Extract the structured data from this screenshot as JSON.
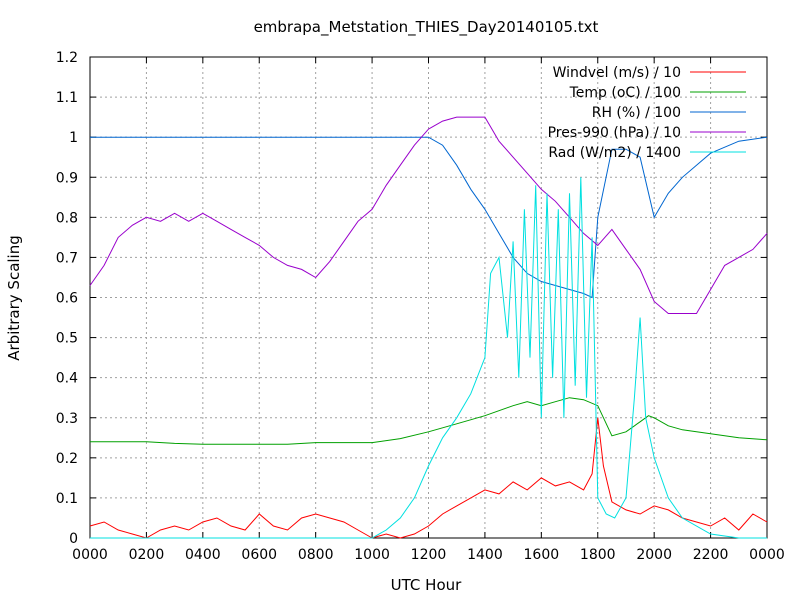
{
  "chart_data": {
    "type": "line",
    "title": "embrapa_Metstation_THIES_Day20140105.txt",
    "xlabel": "UTC Hour",
    "ylabel": "Arbitrary Scaling",
    "xlim": [
      0,
      2400
    ],
    "ylim": [
      0,
      1.2
    ],
    "grid": true,
    "legend": "top-right",
    "x_tick_values": [
      0,
      200,
      400,
      600,
      800,
      1000,
      1200,
      1400,
      1600,
      1800,
      2000,
      2200,
      2400
    ],
    "x_ticks": [
      "0000",
      "0200",
      "0400",
      "0600",
      "0800",
      "1000",
      "1200",
      "1400",
      "1600",
      "1800",
      "2000",
      "2200",
      "0000"
    ],
    "y_ticks": [
      "0",
      "0.1",
      "0.2",
      "0.3",
      "0.4",
      "0.5",
      "0.6",
      "0.7",
      "0.8",
      "0.9",
      "1",
      "1.1",
      "1.2"
    ],
    "y_tick_values": [
      0,
      0.1,
      0.2,
      0.3,
      0.4,
      0.5,
      0.6,
      0.7,
      0.8,
      0.9,
      1,
      1.1,
      1.2
    ],
    "series": [
      {
        "name": "Windvel (m/s) / 10",
        "color": "#ff0000",
        "x": [
          0,
          50,
          100,
          150,
          200,
          250,
          300,
          350,
          400,
          450,
          500,
          550,
          600,
          650,
          700,
          750,
          800,
          850,
          900,
          950,
          1000,
          1050,
          1100,
          1150,
          1200,
          1250,
          1300,
          1350,
          1400,
          1450,
          1500,
          1550,
          1600,
          1650,
          1700,
          1750,
          1780,
          1800,
          1820,
          1850,
          1900,
          1950,
          2000,
          2050,
          2100,
          2150,
          2200,
          2250,
          2300,
          2350,
          2400
        ],
        "y": [
          0.03,
          0.04,
          0.02,
          0.01,
          0.0,
          0.02,
          0.03,
          0.02,
          0.04,
          0.05,
          0.03,
          0.02,
          0.06,
          0.03,
          0.02,
          0.05,
          0.06,
          0.05,
          0.04,
          0.02,
          0.0,
          0.01,
          0.0,
          0.01,
          0.03,
          0.06,
          0.08,
          0.1,
          0.12,
          0.11,
          0.14,
          0.12,
          0.15,
          0.13,
          0.14,
          0.12,
          0.16,
          0.3,
          0.18,
          0.09,
          0.07,
          0.06,
          0.08,
          0.07,
          0.05,
          0.04,
          0.03,
          0.05,
          0.02,
          0.06,
          0.04
        ]
      },
      {
        "name": "Temp (oC) / 100",
        "color": "#00a000",
        "x": [
          0,
          100,
          200,
          300,
          400,
          500,
          600,
          700,
          800,
          900,
          1000,
          1100,
          1200,
          1300,
          1400,
          1500,
          1550,
          1600,
          1650,
          1700,
          1750,
          1800,
          1850,
          1900,
          1950,
          1980,
          2000,
          2050,
          2100,
          2200,
          2300,
          2400
        ],
        "y": [
          0.24,
          0.24,
          0.24,
          0.236,
          0.234,
          0.234,
          0.234,
          0.234,
          0.238,
          0.238,
          0.238,
          0.248,
          0.265,
          0.285,
          0.305,
          0.33,
          0.34,
          0.33,
          0.34,
          0.35,
          0.345,
          0.33,
          0.255,
          0.265,
          0.29,
          0.305,
          0.3,
          0.28,
          0.27,
          0.26,
          0.25,
          0.245
        ]
      },
      {
        "name": "RH (%) / 100",
        "color": "#0066d0",
        "x": [
          0,
          200,
          400,
          600,
          800,
          1000,
          1100,
          1200,
          1250,
          1300,
          1350,
          1400,
          1450,
          1500,
          1550,
          1600,
          1650,
          1700,
          1750,
          1780,
          1800,
          1850,
          1900,
          1950,
          2000,
          2050,
          2100,
          2200,
          2300,
          2400
        ],
        "y": [
          1.0,
          1.0,
          1.0,
          1.0,
          1.0,
          1.0,
          1.0,
          1.0,
          0.98,
          0.93,
          0.87,
          0.82,
          0.76,
          0.7,
          0.66,
          0.64,
          0.63,
          0.62,
          0.61,
          0.6,
          0.8,
          0.97,
          0.97,
          0.95,
          0.8,
          0.86,
          0.9,
          0.96,
          0.99,
          1.0
        ]
      },
      {
        "name": "Pres-990 (hPa) / 10",
        "color": "#9900cc",
        "x": [
          0,
          50,
          100,
          150,
          200,
          250,
          300,
          350,
          400,
          450,
          500,
          550,
          600,
          650,
          700,
          750,
          800,
          850,
          900,
          950,
          1000,
          1050,
          1100,
          1150,
          1200,
          1250,
          1300,
          1350,
          1400,
          1450,
          1500,
          1550,
          1600,
          1650,
          1700,
          1750,
          1800,
          1850,
          1900,
          1950,
          2000,
          2050,
          2100,
          2150,
          2200,
          2250,
          2300,
          2350,
          2400
        ],
        "y": [
          0.63,
          0.68,
          0.75,
          0.78,
          0.8,
          0.79,
          0.81,
          0.79,
          0.81,
          0.79,
          0.77,
          0.75,
          0.73,
          0.7,
          0.68,
          0.67,
          0.65,
          0.69,
          0.74,
          0.79,
          0.82,
          0.88,
          0.93,
          0.98,
          1.02,
          1.04,
          1.05,
          1.05,
          1.05,
          0.99,
          0.95,
          0.91,
          0.87,
          0.84,
          0.8,
          0.76,
          0.73,
          0.77,
          0.72,
          0.67,
          0.59,
          0.56,
          0.56,
          0.56,
          0.62,
          0.68,
          0.7,
          0.72,
          0.76
        ]
      },
      {
        "name": "Rad (W/m2) / 1400",
        "color": "#00e0e0",
        "x": [
          0,
          1000,
          1050,
          1100,
          1150,
          1200,
          1250,
          1300,
          1350,
          1400,
          1420,
          1450,
          1480,
          1500,
          1520,
          1540,
          1560,
          1580,
          1600,
          1620,
          1640,
          1660,
          1680,
          1700,
          1720,
          1740,
          1760,
          1780,
          1800,
          1830,
          1860,
          1900,
          1930,
          1950,
          1970,
          2000,
          2050,
          2100,
          2200,
          2300,
          2400
        ],
        "y": [
          0.0,
          0.0,
          0.02,
          0.05,
          0.1,
          0.18,
          0.25,
          0.3,
          0.36,
          0.45,
          0.66,
          0.7,
          0.5,
          0.74,
          0.4,
          0.82,
          0.45,
          0.88,
          0.3,
          0.86,
          0.4,
          0.82,
          0.3,
          0.86,
          0.38,
          0.9,
          0.35,
          0.75,
          0.1,
          0.06,
          0.05,
          0.1,
          0.35,
          0.55,
          0.3,
          0.2,
          0.1,
          0.05,
          0.01,
          0.0,
          0.0
        ]
      }
    ]
  }
}
